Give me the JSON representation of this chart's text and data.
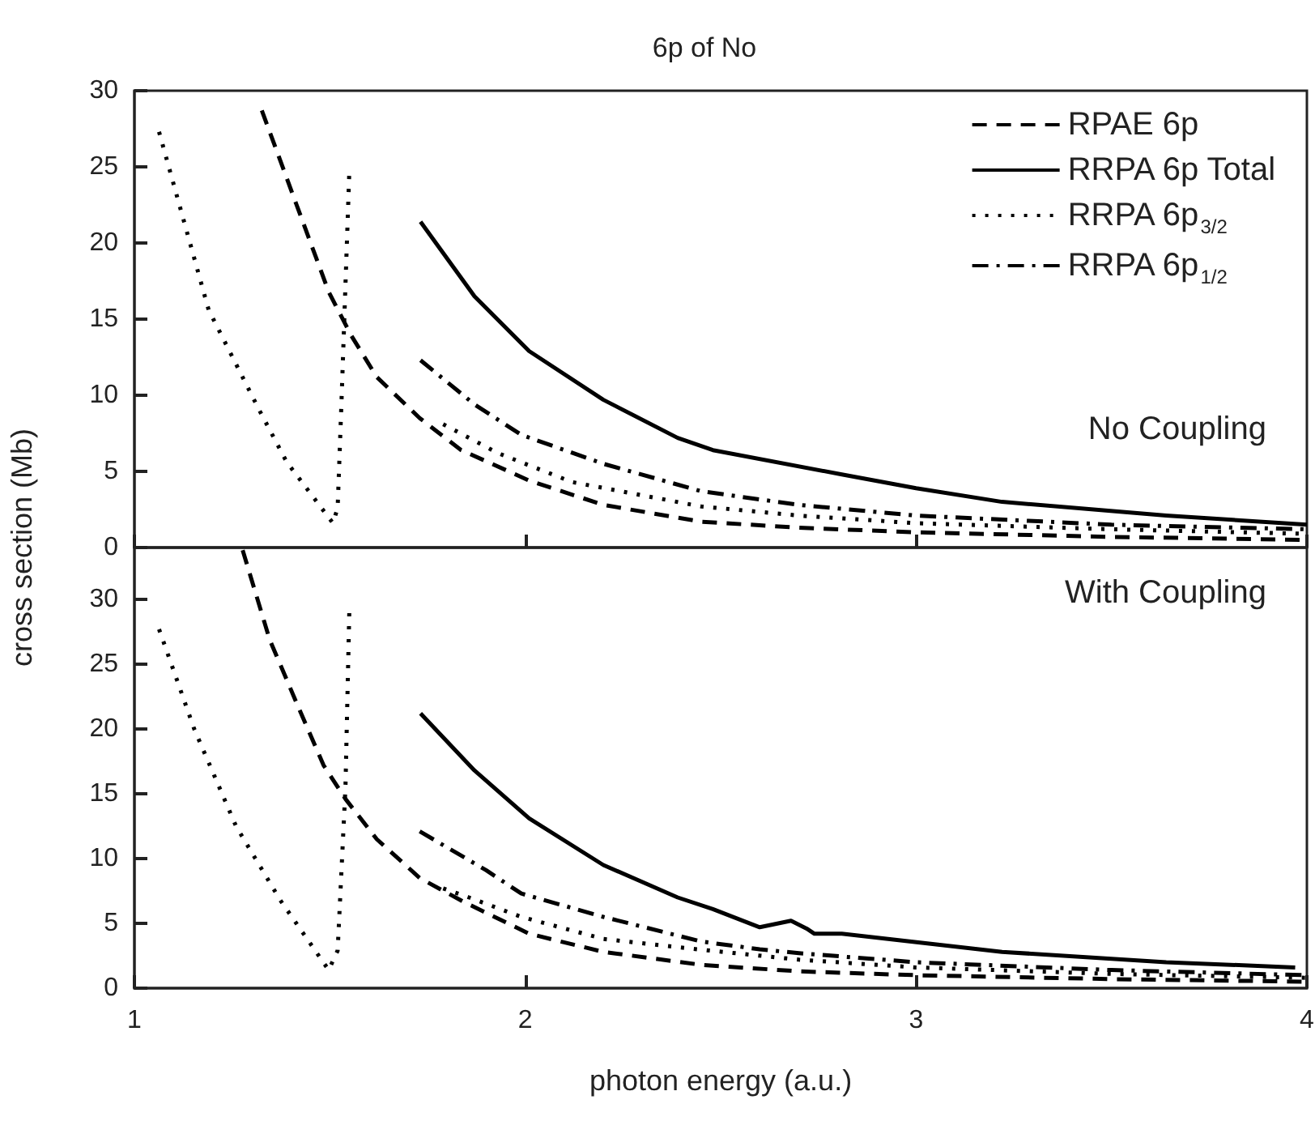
{
  "chart_data": [
    {
      "type": "line",
      "title": "6p of No",
      "ylabel": "cross section (Mb)",
      "annotations": [
        "No Coupling"
      ],
      "xlim": [
        1,
        4
      ],
      "xticks": [
        1,
        2,
        3,
        4
      ],
      "ylim": [
        0,
        30
      ],
      "yticks": [
        0,
        5,
        10,
        15,
        20,
        25,
        30
      ],
      "tick_labels": "y",
      "grid": false,
      "legend": "top right",
      "marker": "none",
      "series": [
        {
          "name": "RPAE 6p",
          "color": "#000000",
          "line_style": "dashed",
          "x": [
            1.326,
            1.415,
            1.497,
            1.553,
            1.62,
            1.73,
            1.836,
            2.01,
            2.2,
            2.45,
            2.7,
            3.0,
            3.5,
            4.0
          ],
          "values": [
            28.7,
            22.5,
            16.8,
            14.0,
            11.2,
            8.5,
            6.4,
            4.4,
            2.8,
            1.7,
            1.3,
            1.0,
            0.7,
            0.5
          ]
        },
        {
          "name": "RRPA 6p Total",
          "color": "#000000",
          "line_style": "solid",
          "x": [
            1.732,
            1.87,
            2.01,
            2.2,
            2.39,
            2.48,
            2.81,
            3.0,
            3.22,
            3.64,
            4.0
          ],
          "values": [
            21.4,
            16.5,
            12.9,
            9.7,
            7.2,
            6.4,
            4.8,
            3.9,
            3.0,
            2.1,
            1.5
          ]
        },
        {
          "name": "RRPA 6p$_{3/2}$",
          "color": "#000000",
          "line_style": "dotted",
          "x": [
            1.063,
            1.19,
            1.32,
            1.39,
            1.508,
            1.52,
            1.53,
            1.55,
            1.65,
            1.79,
            1.93,
            2.12,
            2.45,
            2.7,
            3.0,
            3.5,
            4.0
          ],
          "values": [
            27.3,
            15.6,
            9.0,
            5.6,
            1.6,
            2.6,
            9.7,
            24.8,
            null,
            8.1,
            6.2,
            4.3,
            2.7,
            2.1,
            1.6,
            1.2,
            0.9
          ]
        },
        {
          "name": "RRPA 6p$_{1/2}$",
          "color": "#000000",
          "line_style": "dashdot",
          "x": [
            1.732,
            1.87,
            1.99,
            2.2,
            2.45,
            2.7,
            3.0,
            3.5,
            4.0
          ],
          "values": [
            12.3,
            9.4,
            7.4,
            5.5,
            3.7,
            2.8,
            2.1,
            1.5,
            1.2
          ]
        }
      ]
    },
    {
      "type": "line",
      "xlabel": "photon energy (a.u.)",
      "annotations": [
        "With Coupling"
      ],
      "xlim": [
        1,
        4
      ],
      "xticks": [
        1,
        2,
        3,
        4
      ],
      "ylim": [
        0,
        34
      ],
      "yticks": [
        0,
        5,
        10,
        15,
        20,
        25,
        30
      ],
      "grid": false,
      "marker": "none",
      "series": [
        {
          "color": "#000000",
          "line_style": "dashed",
          "x": [
            1.277,
            1.346,
            1.415,
            1.484,
            1.54,
            1.62,
            1.73,
            1.84,
            2.01,
            2.2,
            2.45,
            2.7,
            3.0,
            3.5,
            4.0
          ],
          "values": [
            33.8,
            26.9,
            22.0,
            17.2,
            14.6,
            11.5,
            8.5,
            6.7,
            4.2,
            2.8,
            1.8,
            1.3,
            1.0,
            0.7,
            0.5
          ]
        },
        {
          "color": "#000000",
          "line_style": "solid",
          "x": [
            1.732,
            1.87,
            2.01,
            2.2,
            2.39,
            2.48,
            2.6,
            2.68,
            2.72,
            2.74,
            2.81,
            3.22,
            3.64,
            3.97
          ],
          "values": [
            21.2,
            16.8,
            13.1,
            9.5,
            7.0,
            6.1,
            4.7,
            5.2,
            4.6,
            4.2,
            4.2,
            2.8,
            2.0,
            1.6
          ]
        },
        {
          "color": "#000000",
          "line_style": "dotted",
          "x": [
            1.063,
            1.153,
            1.26,
            1.373,
            1.497,
            1.52,
            1.54,
            1.55,
            1.65,
            1.79,
            1.856,
            1.99,
            2.2,
            2.44,
            2.7,
            3.0,
            3.5,
            4.0
          ],
          "values": [
            27.7,
            20.0,
            12.5,
            6.8,
            1.4,
            2.9,
            15.5,
            29.3,
            null,
            7.7,
            7.0,
            5.5,
            3.8,
            3.0,
            2.2,
            1.6,
            1.1,
            0.8
          ]
        },
        {
          "color": "#000000",
          "line_style": "dashdot",
          "x": [
            1.73,
            1.9,
            1.99,
            2.2,
            2.45,
            2.6,
            2.7,
            3.0,
            3.5,
            4.0
          ],
          "values": [
            12.1,
            9.1,
            7.3,
            5.5,
            3.6,
            3.0,
            2.7,
            2.0,
            1.4,
            1.0
          ]
        }
      ]
    }
  ]
}
